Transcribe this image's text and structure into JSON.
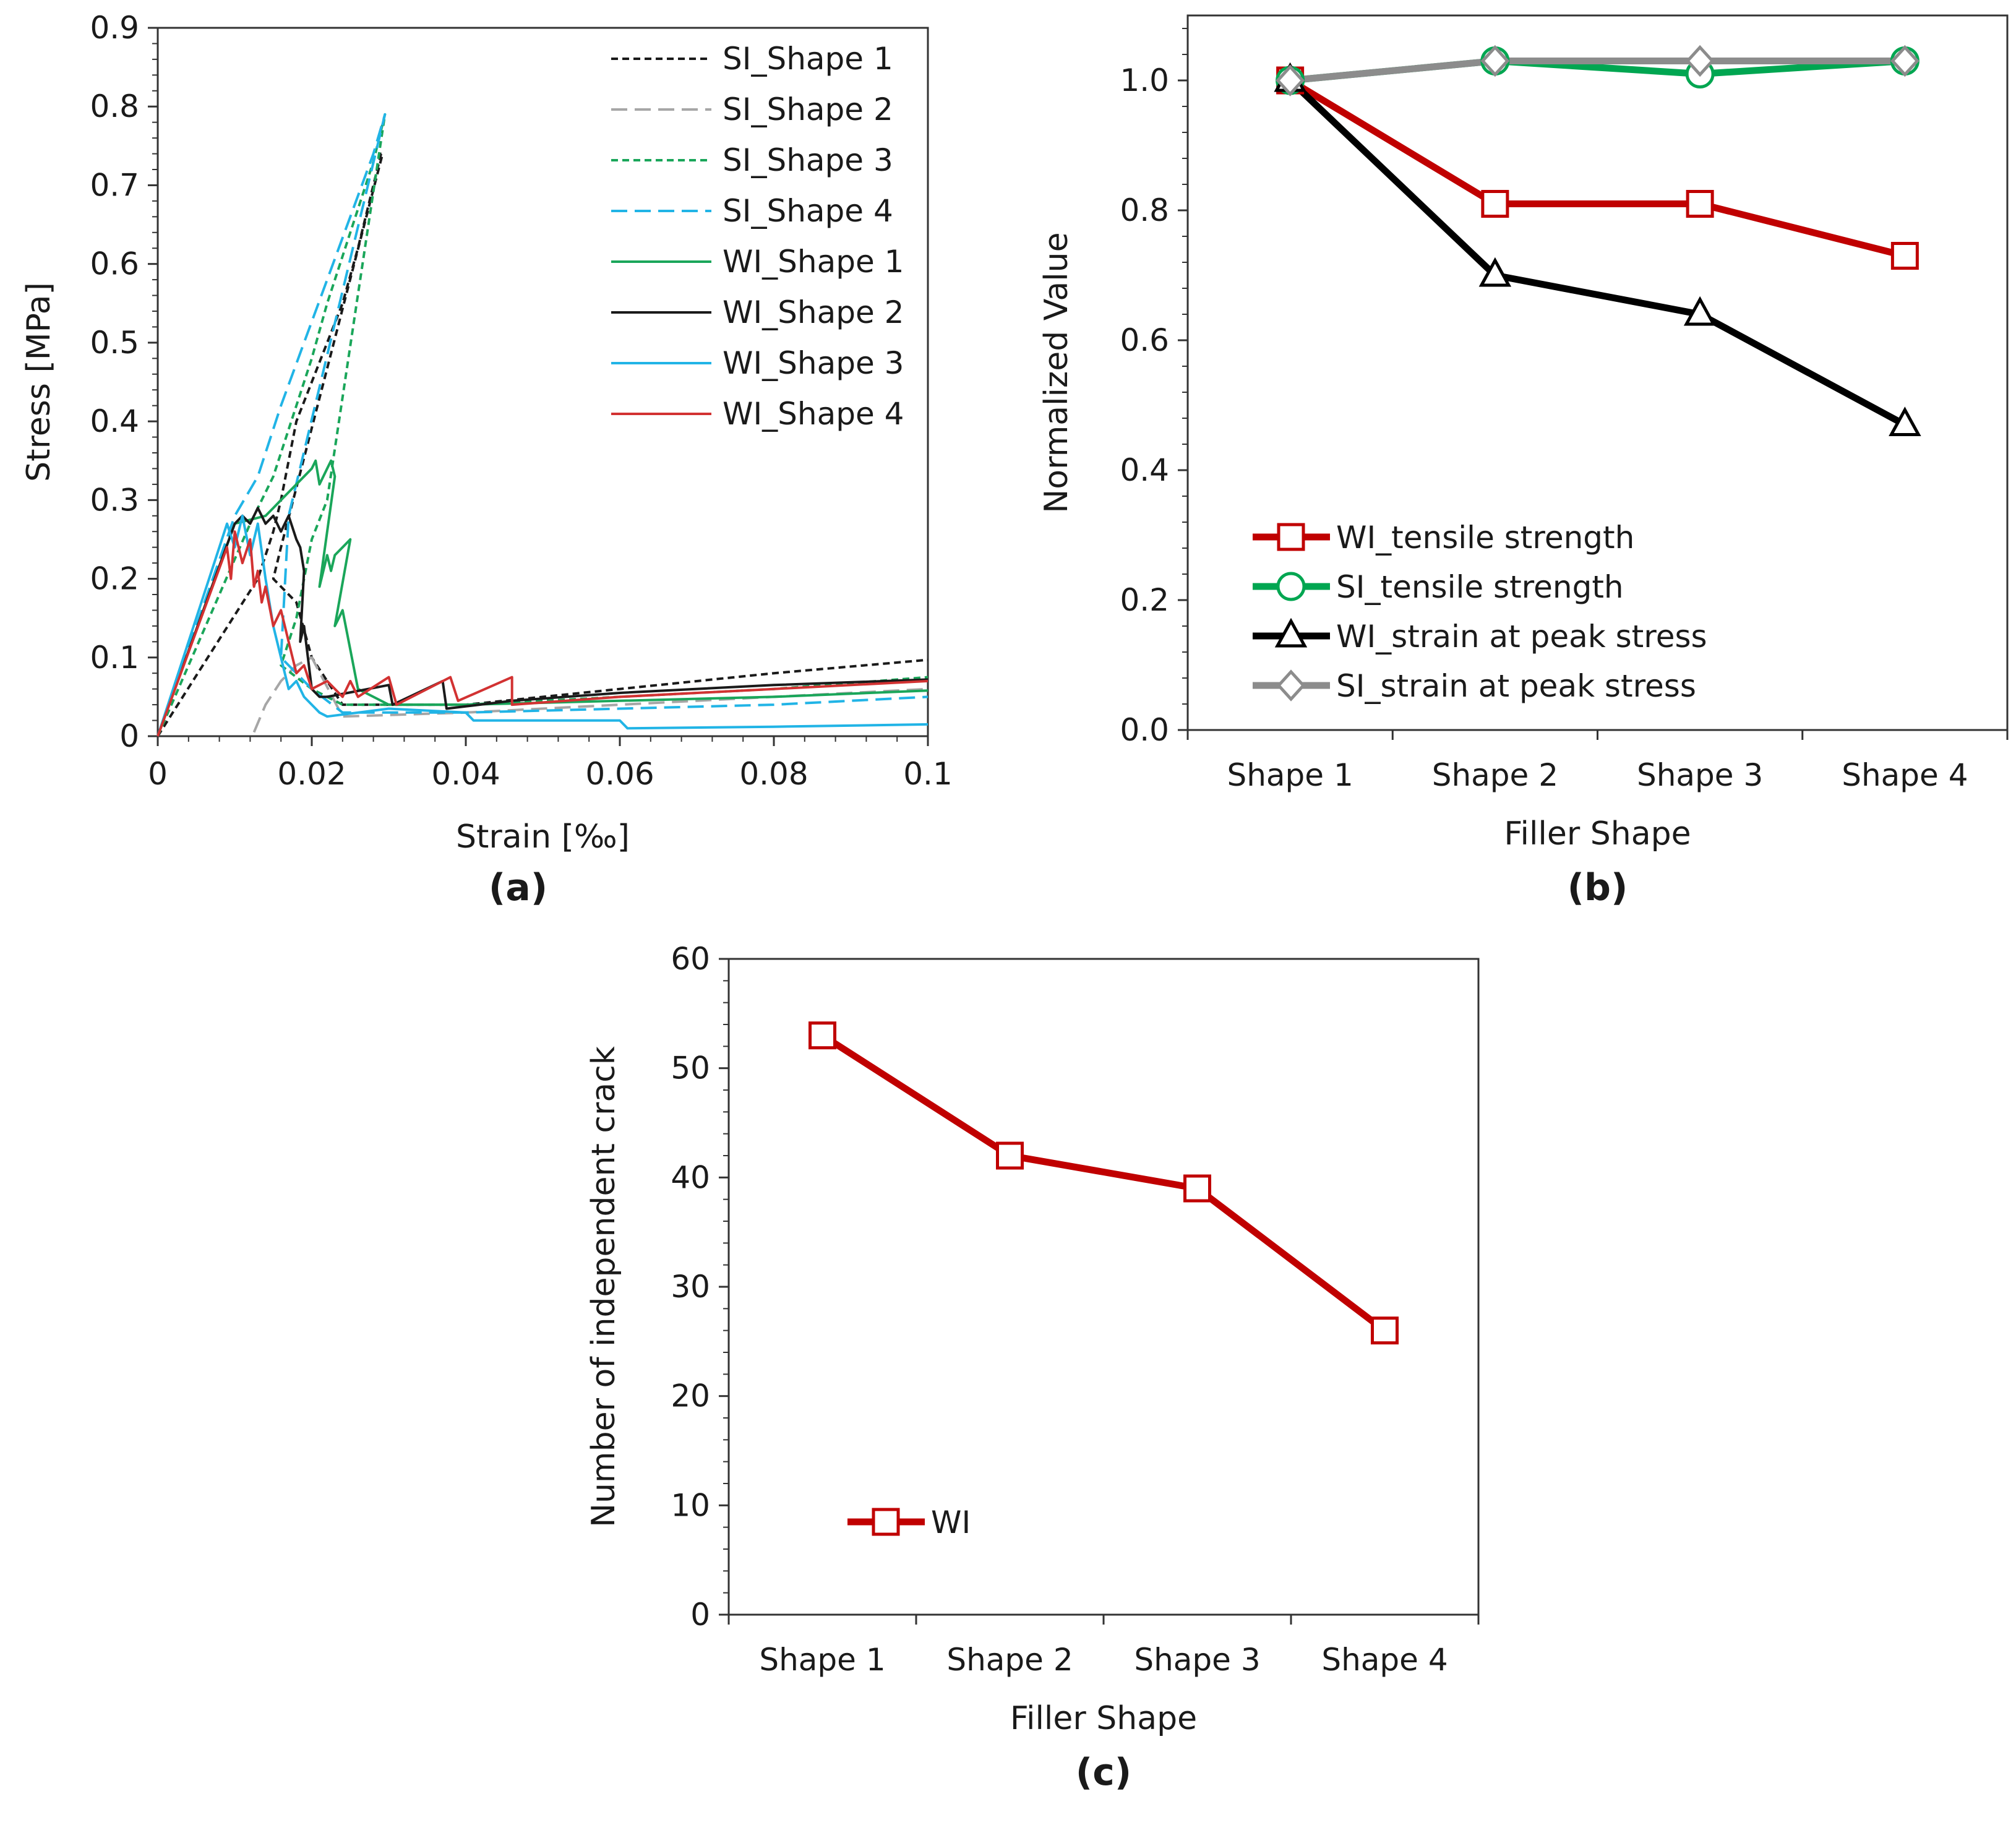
{
  "chart_data": [
    {
      "id": "a",
      "type": "line",
      "panel_label": "(a)",
      "xlabel": "Strain [‰]",
      "ylabel": "Stress [MPa]",
      "xlim": [
        0,
        0.1
      ],
      "ylim": [
        0,
        0.9
      ],
      "x_ticks": [
        "0",
        "0.02",
        "0.04",
        "0.06",
        "0.08",
        "0.1"
      ],
      "y_ticks": [
        "0",
        "0.1",
        "0.2",
        "0.3",
        "0.4",
        "0.5",
        "0.6",
        "0.7",
        "0.8",
        "0.9"
      ],
      "legend_position": "top-right",
      "series": [
        {
          "name": "SI_Shape 1",
          "color": "#1a1a1a",
          "dash": "short",
          "x": [
            0,
            0.013,
            0.015,
            0.016,
            0.018,
            0.02,
            0.022,
            0.024,
            0.026,
            0.028,
            0.029,
            0.0292,
            0.016,
            0.015,
            0.018,
            0.02,
            0.024,
            0.04,
            0.06,
            0.08,
            0.1
          ],
          "y": [
            0,
            0.2,
            0.26,
            0.3,
            0.4,
            0.45,
            0.5,
            0.55,
            0.62,
            0.7,
            0.74,
            0.74,
            0.24,
            0.2,
            0.17,
            0.1,
            0.04,
            0.04,
            0.06,
            0.08,
            0.097
          ]
        },
        {
          "name": "SI_Shape 2",
          "color": "#a6a6a6",
          "dash": "long",
          "x": [
            0.0125,
            0.014,
            0.016,
            0.018,
            0.02,
            0.024,
            0.04,
            0.06,
            0.08,
            0.1
          ],
          "y": [
            0.005,
            0.04,
            0.07,
            0.09,
            0.1,
            0.025,
            0.03,
            0.04,
            0.05,
            0.06
          ]
        },
        {
          "name": "SI_Shape 3",
          "color": "#1aa65a",
          "dash": "short",
          "x": [
            0,
            0.012,
            0.015,
            0.018,
            0.02,
            0.022,
            0.025,
            0.028,
            0.0295,
            0.0295,
            0.022,
            0.02,
            0.018,
            0.016,
            0.02,
            0.024,
            0.04,
            0.06,
            0.08,
            0.1
          ],
          "y": [
            0,
            0.27,
            0.33,
            0.42,
            0.48,
            0.55,
            0.64,
            0.73,
            0.79,
            0.79,
            0.3,
            0.25,
            0.15,
            0.09,
            0.06,
            0.04,
            0.04,
            0.05,
            0.06,
            0.075
          ]
        },
        {
          "name": "SI_Shape 4",
          "color": "#21b4e6",
          "dash": "long",
          "x": [
            0,
            0.01,
            0.013,
            0.016,
            0.019,
            0.022,
            0.025,
            0.028,
            0.0295,
            0.0295,
            0.017,
            0.016,
            0.02,
            0.024,
            0.04,
            0.06,
            0.08,
            0.1
          ],
          "y": [
            0,
            0.28,
            0.33,
            0.42,
            0.5,
            0.58,
            0.66,
            0.74,
            0.79,
            0.79,
            0.28,
            0.1,
            0.06,
            0.03,
            0.03,
            0.035,
            0.04,
            0.05
          ]
        },
        {
          "name": "WI_Shape 1",
          "color": "#1aa65a",
          "dash": "solid",
          "x": [
            0,
            0.01,
            0.014,
            0.015,
            0.016,
            0.017,
            0.018,
            0.019,
            0.02,
            0.0205,
            0.021,
            0.022,
            0.0225,
            0.023,
            0.021,
            0.0215,
            0.022,
            0.0225,
            0.023,
            0.024,
            0.025,
            0.023,
            0.0235,
            0.024,
            0.025,
            0.026,
            0.028,
            0.03,
            0.04,
            0.06,
            0.08,
            0.1
          ],
          "y": [
            0,
            0.27,
            0.28,
            0.29,
            0.3,
            0.31,
            0.32,
            0.33,
            0.34,
            0.35,
            0.32,
            0.34,
            0.35,
            0.33,
            0.19,
            0.21,
            0.23,
            0.21,
            0.23,
            0.24,
            0.25,
            0.14,
            0.15,
            0.16,
            0.11,
            0.06,
            0.05,
            0.04,
            0.04,
            0.045,
            0.05,
            0.058
          ]
        },
        {
          "name": "WI_Shape 2",
          "color": "#1a1a1a",
          "dash": "solid",
          "x": [
            0,
            0.01,
            0.011,
            0.012,
            0.013,
            0.014,
            0.015,
            0.016,
            0.017,
            0.018,
            0.0185,
            0.019,
            0.0185,
            0.019,
            0.02,
            0.021,
            0.022,
            0.03,
            0.0305,
            0.037,
            0.0375,
            0.046,
            0.06,
            0.08,
            0.1
          ],
          "y": [
            0,
            0.27,
            0.28,
            0.27,
            0.29,
            0.27,
            0.28,
            0.26,
            0.28,
            0.25,
            0.24,
            0.21,
            0.12,
            0.14,
            0.06,
            0.05,
            0.05,
            0.065,
            0.04,
            0.07,
            0.035,
            0.045,
            0.055,
            0.065,
            0.072
          ]
        },
        {
          "name": "WI_Shape 3",
          "color": "#21b4e6",
          "dash": "solid",
          "x": [
            0,
            0.009,
            0.01,
            0.011,
            0.012,
            0.013,
            0.014,
            0.015,
            0.016,
            0.017,
            0.018,
            0.019,
            0.02,
            0.021,
            0.022,
            0.03,
            0.04,
            0.041,
            0.06,
            0.061,
            0.08,
            0.1
          ],
          "y": [
            0,
            0.27,
            0.24,
            0.28,
            0.23,
            0.27,
            0.2,
            0.14,
            0.1,
            0.06,
            0.07,
            0.05,
            0.04,
            0.03,
            0.025,
            0.035,
            0.03,
            0.02,
            0.02,
            0.01,
            0.012,
            0.015
          ]
        },
        {
          "name": "WI_Shape 4",
          "color": "#d23232",
          "dash": "solid",
          "x": [
            0,
            0.009,
            0.0095,
            0.01,
            0.011,
            0.012,
            0.0125,
            0.013,
            0.0135,
            0.014,
            0.015,
            0.016,
            0.017,
            0.018,
            0.019,
            0.02,
            0.022,
            0.024,
            0.025,
            0.026,
            0.03,
            0.031,
            0.038,
            0.039,
            0.046,
            0.046,
            0.06,
            0.08,
            0.1
          ],
          "y": [
            0,
            0.24,
            0.2,
            0.26,
            0.22,
            0.25,
            0.19,
            0.21,
            0.17,
            0.19,
            0.14,
            0.16,
            0.12,
            0.08,
            0.09,
            0.06,
            0.07,
            0.05,
            0.07,
            0.05,
            0.075,
            0.04,
            0.075,
            0.045,
            0.075,
            0.04,
            0.05,
            0.06,
            0.07
          ]
        }
      ]
    },
    {
      "id": "b",
      "type": "line",
      "panel_label": "(b)",
      "xlabel": "Filler Shape",
      "ylabel": "Normalized Value",
      "categories": [
        "Shape 1",
        "Shape 2",
        "Shape 3",
        "Shape 4"
      ],
      "ylim": [
        0,
        1.1
      ],
      "y_ticks": [
        "0.0",
        "0.2",
        "0.4",
        "0.6",
        "0.8",
        "1.0"
      ],
      "legend_position": "bottom-left",
      "series": [
        {
          "name": "WI_tensile strength",
          "color": "#c00000",
          "marker": "square",
          "values": [
            1.0,
            0.81,
            0.81,
            0.73
          ]
        },
        {
          "name": "SI_tensile strength",
          "color": "#00a651",
          "marker": "circle",
          "values": [
            1.0,
            1.03,
            1.01,
            1.03
          ]
        },
        {
          "name": "WI_strain at peak stress",
          "color": "#000000",
          "marker": "triangle",
          "values": [
            1.0,
            0.7,
            0.64,
            0.47
          ]
        },
        {
          "name": "SI_strain at peak stress",
          "color": "#8c8c8c",
          "marker": "diamond",
          "values": [
            1.0,
            1.03,
            1.03,
            1.03
          ]
        }
      ]
    },
    {
      "id": "c",
      "type": "line",
      "panel_label": "(c)",
      "xlabel": "Filler Shape",
      "ylabel": "Number of independent crack",
      "categories": [
        "Shape 1",
        "Shape 2",
        "Shape 3",
        "Shape 4"
      ],
      "ylim": [
        0,
        60
      ],
      "y_ticks": [
        "0",
        "10",
        "20",
        "30",
        "40",
        "50",
        "60"
      ],
      "legend_position": "bottom-left",
      "series": [
        {
          "name": "WI",
          "color": "#c00000",
          "marker": "square",
          "values": [
            53,
            42,
            39,
            26
          ]
        }
      ]
    }
  ]
}
